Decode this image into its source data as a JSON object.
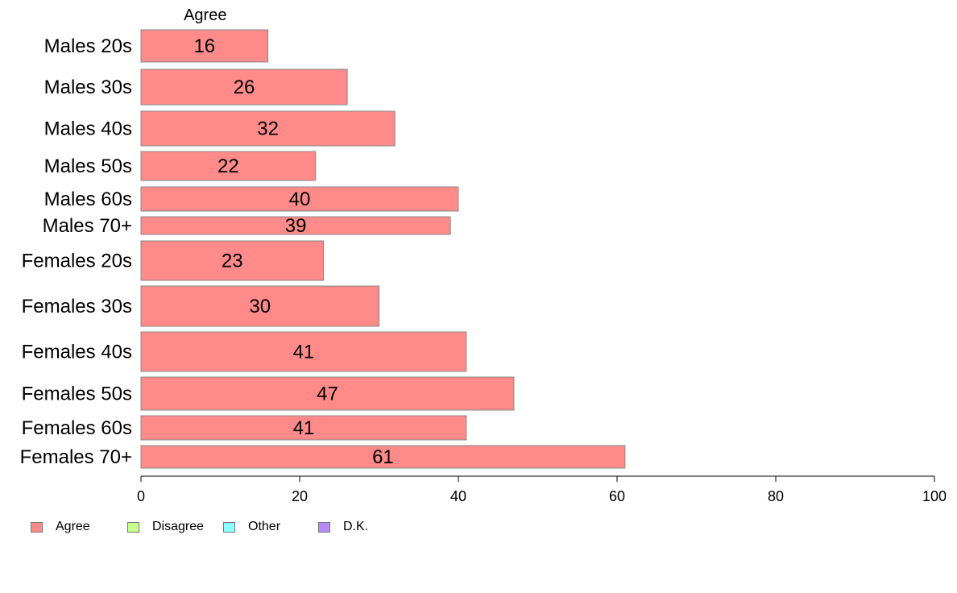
{
  "chart_data": {
    "type": "bar",
    "orientation": "horizontal",
    "header": "Agree",
    "categories": [
      "Males 20s",
      "Males 30s",
      "Males 40s",
      "Males 50s",
      "Males 60s",
      "Males 70+",
      "Females 20s",
      "Females 30s",
      "Females 40s",
      "Females 50s",
      "Females 60s",
      "Females 70+"
    ],
    "series": [
      {
        "name": "Agree",
        "color": "#ff8a8a",
        "values": [
          16,
          26,
          32,
          22,
          40,
          39,
          23,
          30,
          41,
          47,
          41,
          61
        ]
      }
    ],
    "data_labels": [
      "16",
      "26",
      "32",
      "22",
      "40",
      "39",
      "23",
      "30",
      "41",
      "47",
      "41",
      "61"
    ],
    "xlim": [
      0,
      100
    ],
    "xticks": [
      0,
      20,
      40,
      60,
      80,
      100
    ],
    "legend": {
      "placement": "bottom-left",
      "items": [
        {
          "label": "Agree",
          "color": "#ff8a8a"
        },
        {
          "label": "Disagree",
          "color": "#c6ff8a"
        },
        {
          "label": "Other",
          "color": "#8affff"
        },
        {
          "label": "D.K.",
          "color": "#b98aff"
        }
      ]
    },
    "grid": false
  }
}
